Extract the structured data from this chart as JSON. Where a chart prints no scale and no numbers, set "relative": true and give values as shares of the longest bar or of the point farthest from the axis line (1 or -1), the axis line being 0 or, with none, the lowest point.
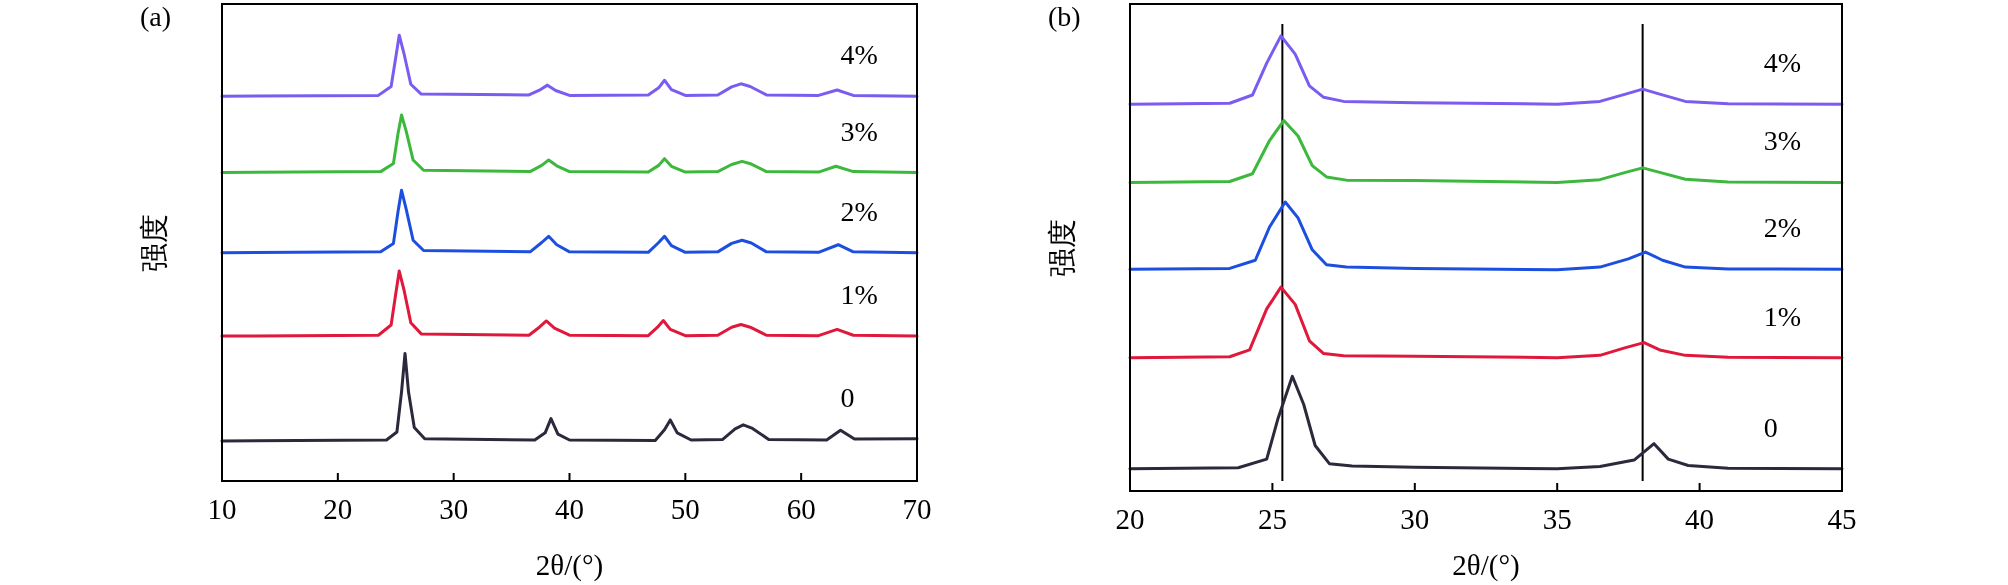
{
  "chart_data": [
    {
      "type": "line",
      "title": "(a)",
      "xlabel": "2θ/(°)",
      "ylabel": "强度",
      "relative": true,
      "xlim": [
        10,
        70
      ],
      "xticks": [
        10,
        20,
        30,
        40,
        50,
        60,
        70
      ],
      "series": [
        {
          "name": "0",
          "color": "#2b2a3d",
          "x": [
            10,
            24.2,
            25.1,
            25.5,
            25.8,
            26.1,
            26.6,
            27.5,
            37.0,
            37.9,
            38.4,
            39.0,
            40,
            47.4,
            48.2,
            48.7,
            49.3,
            50.5,
            53.2,
            54.3,
            55.0,
            55.8,
            57.2,
            62.2,
            63.4,
            64.6,
            70
          ],
          "values": [
            0.09,
            0.092,
            0.11,
            0.2,
            0.286,
            0.2,
            0.12,
            0.095,
            0.092,
            0.108,
            0.14,
            0.105,
            0.092,
            0.091,
            0.115,
            0.137,
            0.108,
            0.092,
            0.093,
            0.117,
            0.126,
            0.118,
            0.093,
            0.092,
            0.114,
            0.094,
            0.095
          ]
        },
        {
          "name": "1%",
          "color": "#e0183c",
          "x": [
            10,
            23.5,
            24.6,
            25.0,
            25.3,
            25.7,
            26.3,
            27.2,
            36.5,
            37.4,
            38.0,
            38.7,
            40,
            46.8,
            47.6,
            48.1,
            48.7,
            50,
            52.8,
            54,
            54.8,
            55.6,
            57,
            61.5,
            63.1,
            64.5,
            70
          ],
          "values": [
            0.325,
            0.327,
            0.35,
            0.42,
            0.471,
            0.43,
            0.355,
            0.33,
            0.327,
            0.345,
            0.359,
            0.343,
            0.327,
            0.326,
            0.345,
            0.36,
            0.34,
            0.326,
            0.327,
            0.345,
            0.351,
            0.345,
            0.327,
            0.326,
            0.34,
            0.327,
            0.325
          ]
        },
        {
          "name": "2%",
          "color": "#1c4fe0",
          "x": [
            10,
            23.7,
            24.8,
            25.2,
            25.5,
            25.9,
            26.5,
            27.4,
            36.6,
            37.6,
            38.2,
            38.9,
            40,
            46.8,
            47.7,
            48.2,
            48.8,
            50,
            52.8,
            54,
            54.9,
            55.7,
            57,
            61.5,
            63.2,
            64.5,
            70
          ],
          "values": [
            0.512,
            0.514,
            0.533,
            0.605,
            0.652,
            0.61,
            0.54,
            0.517,
            0.514,
            0.535,
            0.549,
            0.53,
            0.514,
            0.513,
            0.535,
            0.549,
            0.528,
            0.513,
            0.514,
            0.533,
            0.54,
            0.534,
            0.514,
            0.513,
            0.53,
            0.514,
            0.512
          ]
        },
        {
          "name": "3%",
          "color": "#3cb83c",
          "x": [
            10,
            23.7,
            24.8,
            25.2,
            25.5,
            25.9,
            26.5,
            27.4,
            36.6,
            37.6,
            38.2,
            38.9,
            40,
            46.8,
            47.7,
            48.2,
            48.8,
            50,
            52.8,
            54,
            54.9,
            55.7,
            57,
            61.5,
            63.0,
            64.5,
            70
          ],
          "values": [
            0.692,
            0.694,
            0.712,
            0.78,
            0.821,
            0.785,
            0.72,
            0.697,
            0.694,
            0.708,
            0.72,
            0.707,
            0.694,
            0.693,
            0.708,
            0.723,
            0.706,
            0.693,
            0.694,
            0.71,
            0.717,
            0.711,
            0.694,
            0.693,
            0.706,
            0.694,
            0.692
          ]
        },
        {
          "name": "4%",
          "color": "#7b5cf0",
          "x": [
            10,
            23.5,
            24.6,
            25.0,
            25.3,
            25.7,
            26.3,
            27.2,
            36.5,
            37.5,
            38.1,
            38.8,
            40,
            46.8,
            47.7,
            48.2,
            48.8,
            50,
            52.8,
            54,
            54.8,
            55.6,
            57,
            61.5,
            63.1,
            64.5,
            70
          ],
          "values": [
            0.863,
            0.865,
            0.885,
            0.95,
            1.0,
            0.96,
            0.89,
            0.868,
            0.866,
            0.878,
            0.888,
            0.876,
            0.865,
            0.866,
            0.882,
            0.899,
            0.878,
            0.865,
            0.866,
            0.884,
            0.891,
            0.885,
            0.866,
            0.865,
            0.877,
            0.865,
            0.863
          ]
        }
      ]
    },
    {
      "type": "line",
      "title": "(b)",
      "xlabel": "2θ/(°)",
      "ylabel": "强度",
      "relative": true,
      "xlim": [
        20,
        45
      ],
      "xticks": [
        20,
        25,
        30,
        35,
        40,
        45
      ],
      "ref_lines": [
        {
          "axis": "x",
          "value": 25.35,
          "color": "#000000"
        },
        {
          "axis": "x",
          "value": 38.0,
          "color": "#000000"
        }
      ],
      "series": [
        {
          "name": "0",
          "color": "#2b2a3d",
          "x": [
            20,
            23.8,
            24.8,
            25.2,
            25.7,
            26.1,
            26.5,
            27,
            27.8,
            30,
            35,
            36.5,
            37.7,
            38.4,
            38.9,
            39.6,
            41,
            45
          ],
          "values": [
            0.049,
            0.051,
            0.07,
            0.16,
            0.252,
            0.19,
            0.1,
            0.06,
            0.055,
            0.052,
            0.049,
            0.054,
            0.068,
            0.104,
            0.07,
            0.056,
            0.05,
            0.049
          ]
        },
        {
          "name": "1%",
          "color": "#e0183c",
          "x": [
            20,
            23.5,
            24.2,
            24.8,
            25.3,
            25.8,
            26.3,
            26.8,
            27.5,
            30,
            35,
            36.5,
            37.4,
            38.05,
            38.6,
            39.5,
            41,
            45
          ],
          "values": [
            0.293,
            0.295,
            0.31,
            0.4,
            0.448,
            0.41,
            0.33,
            0.302,
            0.297,
            0.296,
            0.293,
            0.298,
            0.315,
            0.326,
            0.31,
            0.298,
            0.294,
            0.293
          ]
        },
        {
          "name": "2%",
          "color": "#1c4fe0",
          "x": [
            20,
            23.5,
            24.4,
            24.9,
            25.45,
            25.9,
            26.4,
            26.9,
            27.6,
            30,
            35,
            36.5,
            37.5,
            38.1,
            38.7,
            39.5,
            41,
            45
          ],
          "values": [
            0.487,
            0.489,
            0.507,
            0.58,
            0.635,
            0.6,
            0.53,
            0.497,
            0.492,
            0.489,
            0.486,
            0.492,
            0.51,
            0.525,
            0.507,
            0.492,
            0.488,
            0.487
          ]
        },
        {
          "name": "3%",
          "color": "#3cb83c",
          "x": [
            20,
            23.5,
            24.3,
            24.9,
            25.4,
            25.9,
            26.4,
            26.9,
            27.6,
            30,
            35,
            36.5,
            37.4,
            38.0,
            38.6,
            39.5,
            41,
            45
          ],
          "values": [
            0.678,
            0.68,
            0.697,
            0.77,
            0.814,
            0.78,
            0.715,
            0.69,
            0.683,
            0.682,
            0.678,
            0.684,
            0.7,
            0.71,
            0.7,
            0.685,
            0.679,
            0.678
          ]
        },
        {
          "name": "4%",
          "color": "#7b5cf0",
          "x": [
            20,
            23.5,
            24.3,
            24.8,
            25.3,
            25.8,
            26.3,
            26.8,
            27.5,
            30,
            35,
            36.5,
            37.4,
            38.0,
            38.6,
            39.5,
            41,
            45
          ],
          "values": [
            0.85,
            0.852,
            0.87,
            0.94,
            1.0,
            0.96,
            0.89,
            0.865,
            0.856,
            0.853,
            0.85,
            0.856,
            0.872,
            0.883,
            0.872,
            0.856,
            0.851,
            0.85
          ]
        }
      ]
    }
  ]
}
